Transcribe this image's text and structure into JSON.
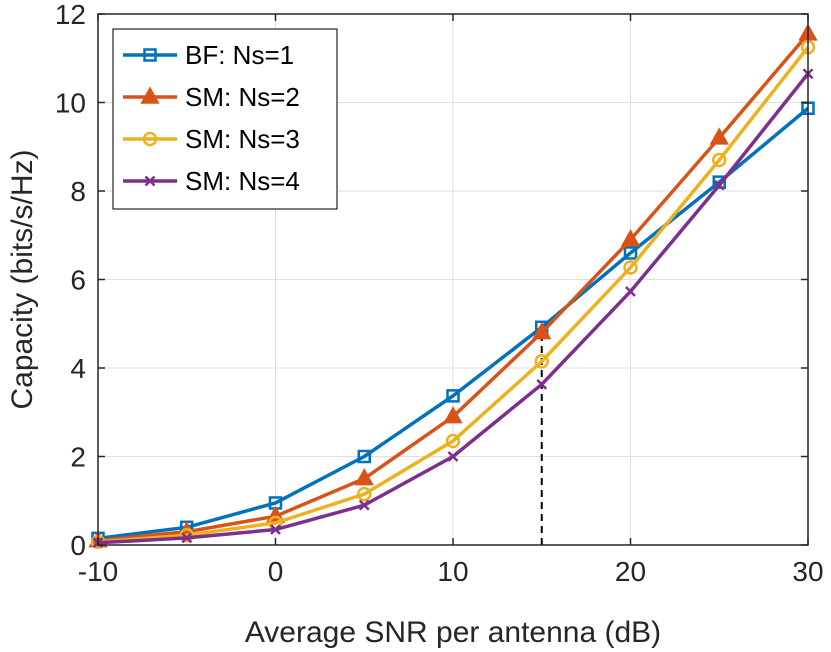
{
  "chart_data": {
    "type": "line",
    "title": "",
    "xlabel": "Average SNR per antenna (dB)",
    "ylabel": "Capacity (bits/s/Hz)",
    "x": [
      -10,
      -5,
      0,
      5,
      10,
      15,
      20,
      25,
      30
    ],
    "xlim": [
      -10,
      30
    ],
    "ylim": [
      0,
      12
    ],
    "xticks": [
      -10,
      0,
      10,
      20,
      30
    ],
    "yticks": [
      0,
      2,
      4,
      6,
      8,
      10,
      12
    ],
    "xtick_labels": [
      "-10",
      "0",
      "10",
      "20",
      "30"
    ],
    "ytick_labels": [
      "0",
      "2",
      "4",
      "6",
      "8",
      "10",
      "12"
    ],
    "grid": true,
    "legend_position": "top-left",
    "series": [
      {
        "name": "BF: Ns=1",
        "color": "#0072BD",
        "marker": "square",
        "values": [
          0.15,
          0.4,
          0.95,
          2.0,
          3.37,
          4.92,
          6.6,
          8.2,
          9.87
        ]
      },
      {
        "name": "SM: Ns=2",
        "color": "#D95319",
        "marker": "triangle",
        "values": [
          0.1,
          0.3,
          0.65,
          1.5,
          2.9,
          4.8,
          6.9,
          9.2,
          11.55
        ]
      },
      {
        "name": "SM: Ns=3",
        "color": "#EDB120",
        "marker": "circle",
        "values": [
          0.07,
          0.22,
          0.5,
          1.15,
          2.35,
          4.15,
          6.27,
          8.7,
          11.25
        ]
      },
      {
        "name": "SM: Ns=4",
        "color": "#7E2F8E",
        "marker": "x",
        "values": [
          0.05,
          0.16,
          0.35,
          0.9,
          2.0,
          3.63,
          5.73,
          8.13,
          10.65
        ]
      }
    ],
    "annotations": [
      {
        "type": "vertical-dashed-line",
        "x": 15,
        "y_from": 0,
        "y_to": 4.85,
        "color": "#000000"
      }
    ]
  }
}
